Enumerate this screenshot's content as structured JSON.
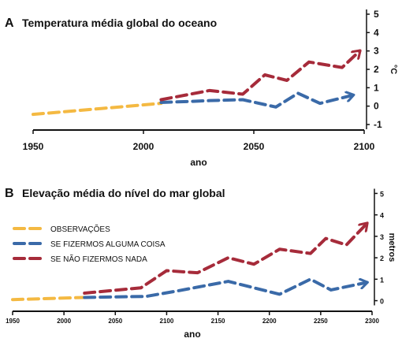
{
  "chart_data": [
    {
      "type": "line",
      "panel_letter": "A",
      "title": "Temperatura média global do oceano",
      "xlabel": "ano",
      "ylabel": "°C",
      "xlim": [
        1950,
        2100
      ],
      "ylim": [
        -1,
        5
      ],
      "x_ticks": [
        1950,
        2000,
        2050,
        2100
      ],
      "y_ticks": [
        -1,
        0,
        1,
        2,
        3,
        4,
        5
      ],
      "y_axis_side": "right",
      "series": [
        {
          "name": "OBSERVAÇÕES",
          "color": "#f4b942",
          "x": [
            1950,
            2008
          ],
          "y": [
            -0.45,
            0.15
          ]
        },
        {
          "name": "SE FIZERMOS ALGUMA COISA",
          "color": "#3a6aa8",
          "x": [
            2008,
            2020,
            2030,
            2045,
            2060,
            2070,
            2080,
            2095
          ],
          "y": [
            0.2,
            0.25,
            0.3,
            0.35,
            -0.05,
            0.7,
            0.15,
            0.6
          ]
        },
        {
          "name": "SE NÃO FIZERMOS NADA",
          "color": "#a62b3a",
          "x": [
            2008,
            2030,
            2045,
            2055,
            2065,
            2075,
            2090,
            2098
          ],
          "y": [
            0.35,
            0.85,
            0.65,
            1.7,
            1.4,
            2.4,
            2.1,
            3.0
          ]
        }
      ]
    },
    {
      "type": "line",
      "panel_letter": "B",
      "title": "Elevação média do nível do mar global",
      "xlabel": "ano",
      "ylabel": "metros",
      "xlim": [
        1950,
        2300
      ],
      "ylim": [
        -0.2,
        5.2
      ],
      "x_ticks": [
        1950,
        2000,
        2050,
        2100,
        2150,
        2200,
        2250,
        2300
      ],
      "y_ticks": [
        0,
        1,
        2,
        3,
        4,
        5
      ],
      "y_axis_side": "right",
      "legend": "top-left",
      "series": [
        {
          "name": "OBSERVAÇÕES",
          "color": "#f4b942",
          "x": [
            1950,
            2020
          ],
          "y": [
            0.05,
            0.15
          ]
        },
        {
          "name": "SE FIZERMOS ALGUMA COISA",
          "color": "#3a6aa8",
          "x": [
            2020,
            2080,
            2110,
            2160,
            2210,
            2240,
            2260,
            2295
          ],
          "y": [
            0.15,
            0.2,
            0.45,
            0.9,
            0.3,
            1.0,
            0.5,
            0.85
          ]
        },
        {
          "name": "SE NÃO FIZERMOS NADA",
          "color": "#a62b3a",
          "x": [
            2020,
            2075,
            2100,
            2130,
            2160,
            2185,
            2210,
            2240,
            2255,
            2275,
            2295
          ],
          "y": [
            0.35,
            0.6,
            1.4,
            1.3,
            2.0,
            1.7,
            2.4,
            2.2,
            2.9,
            2.6,
            3.6
          ]
        }
      ]
    }
  ]
}
